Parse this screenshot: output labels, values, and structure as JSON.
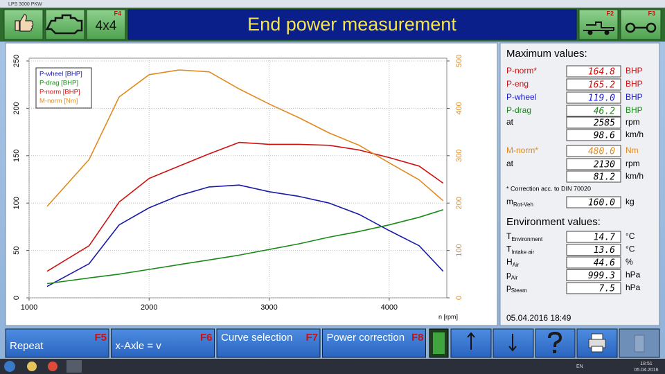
{
  "window_title": "LPS 3000 PKW",
  "toolbar": {
    "button_4x4": "4x4",
    "key_f4": "F4",
    "title": "End power measurement",
    "key_f2": "F2",
    "key_f3": "F3"
  },
  "chart_data": {
    "type": "line",
    "x_label": "n [rpm]",
    "x": [
      1150,
      1500,
      1750,
      2000,
      2250,
      2500,
      2750,
      3000,
      3250,
      3500,
      3750,
      4000,
      4250,
      4450
    ],
    "xlim": [
      1000,
      4480
    ],
    "xticks": [
      1000,
      2000,
      3000,
      4000
    ],
    "ylim": [
      0,
      250
    ],
    "yticks": [
      0,
      50,
      100,
      150,
      200,
      250
    ],
    "y2lim": [
      0,
      500
    ],
    "y2ticks": [
      0,
      100,
      200,
      300,
      400,
      500
    ],
    "grid": true,
    "series": [
      {
        "name": "P-wheel [BHP]",
        "color": "#1a1aa8",
        "values": [
          12,
          36,
          77,
          95,
          108,
          117,
          119,
          112,
          107,
          100,
          88,
          71,
          55,
          28
        ]
      },
      {
        "name": "P-drag [BHP]",
        "color": "#1a8a1a",
        "values": [
          15,
          21,
          25,
          30,
          35,
          40,
          45,
          51,
          57,
          64,
          70,
          77,
          85,
          93
        ]
      },
      {
        "name": "P-norm [BHP]",
        "color": "#d01010",
        "values": [
          28,
          55,
          101,
          126,
          139,
          152,
          164,
          162,
          162,
          161,
          156,
          148,
          139,
          121
        ]
      },
      {
        "name": "M-norm [Nm]",
        "color": "#e08a1e",
        "axis": "y2",
        "values": [
          193,
          292,
          424,
          471,
          481,
          477,
          441,
          409,
          380,
          348,
          322,
          285,
          249,
          205
        ]
      }
    ]
  },
  "max_values": {
    "title": "Maximum values:",
    "rows": [
      {
        "label": "P-norm*",
        "value": "164.8",
        "unit": "BHP",
        "color": "#d01010"
      },
      {
        "label": "P-eng",
        "value": "165.2",
        "unit": "BHP",
        "color": "#d01010"
      },
      {
        "label": "P-wheel",
        "value": "119.0",
        "unit": "BHP",
        "color": "#1a1ad0"
      },
      {
        "label": "P-drag",
        "value": "46.2",
        "unit": "BHP",
        "color": "#1a8a1a"
      },
      {
        "label": "at",
        "value": "2585",
        "unit": "rpm",
        "color": "#000000"
      },
      {
        "value": "98.6",
        "unit": "km/h",
        "color": "#000000"
      },
      {
        "label": "M-norm*",
        "value": "480.0",
        "unit": "Nm",
        "color": "#e08a1e"
      },
      {
        "label": "at",
        "value": "2130",
        "unit": "rpm",
        "color": "#000000"
      },
      {
        "value": "81.2",
        "unit": "km/h",
        "color": "#000000"
      }
    ],
    "note": "* Correction acc. to DIN 70020",
    "mass": {
      "label": "m",
      "sub": "Rot-Veh",
      "value": "160.0",
      "unit": "kg"
    }
  },
  "environment": {
    "title": "Environment values:",
    "rows": [
      {
        "label": "T",
        "sub": "Environment",
        "value": "14.7",
        "unit": "°C"
      },
      {
        "label": "T",
        "sub": "Intake air",
        "value": "13.6",
        "unit": "°C"
      },
      {
        "label": "H",
        "sub": "Air",
        "value": "44.6",
        "unit": "%"
      },
      {
        "label": "p",
        "sub": "Air",
        "value": "999.3",
        "unit": "hPa"
      },
      {
        "label": "p",
        "sub": "Steam",
        "value": "7.5",
        "unit": "hPa"
      }
    ]
  },
  "timestamp": "05.04.2016   18:49",
  "function_keys": [
    {
      "label": "Repeat",
      "key": "F5"
    },
    {
      "label": "x-Axle = v",
      "key": "F6"
    },
    {
      "label": "Curve selection",
      "key": "F7"
    },
    {
      "label": "Power correction",
      "key": "F8"
    }
  ],
  "taskbar": {
    "language": "EN",
    "time": "18:51",
    "date": "05.04.2016"
  }
}
